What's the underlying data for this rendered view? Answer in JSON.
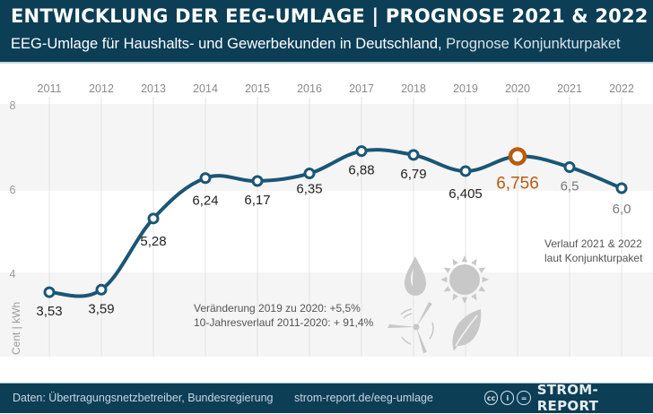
{
  "header": {
    "title": "ENTWICKLUNG DER EEG-UMLAGE | PROGNOSE 2021 & 2022",
    "subtitle_main": "EEG-Umlage für Haushalts- und Gewerbekunden in Deutschland,",
    "subtitle_soft": " Prognose Konjunkturpaket"
  },
  "footer": {
    "source": "Daten: Übertragungsnetzbetreiber, Bundesregierung",
    "url": "strom-report.de/eeg-umlage",
    "brand": "STROM-REPORT",
    "license_icons": [
      "cc-icon",
      "by-icon",
      "nd-icon"
    ]
  },
  "colors": {
    "header_bg": "#0c3e56",
    "line": "#1a5676",
    "highlight": "#b85c10",
    "label_dark": "#222222",
    "label_forecast": "#7a7a7a",
    "band": "#f5f5f5",
    "icon": "#c8c8c8"
  },
  "chart_data": {
    "type": "line",
    "title": "ENTWICKLUNG DER EEG-UMLAGE | PROGNOSE 2021 & 2022",
    "subtitle": "EEG-Umlage für Haushalts- und Gewerbekunden in Deutschland, Prognose Konjunkturpaket",
    "xlabel": "",
    "ylabel": "Cent | kWh",
    "x": [
      "2011",
      "2012",
      "2013",
      "2014",
      "2015",
      "2016",
      "2017",
      "2018",
      "2019",
      "2020",
      "2021",
      "2022"
    ],
    "series": [
      {
        "name": "EEG-Umlage",
        "values": [
          3.53,
          3.59,
          5.28,
          6.24,
          6.17,
          6.35,
          6.88,
          6.79,
          6.405,
          6.756,
          6.5,
          6.0
        ],
        "labels": [
          "3,53",
          "3,59",
          "5,28",
          "6,24",
          "6,17",
          "6,35",
          "6,88",
          "6,79",
          "6,405",
          "6,756",
          "6,5",
          "6,0"
        ],
        "highlight_index": 9,
        "forecast_from_index": 10
      }
    ],
    "yticks": [
      "8",
      "6",
      "4"
    ],
    "ytick_values": [
      8,
      6,
      4
    ],
    "ylim": [
      2,
      8
    ],
    "grid": true,
    "annotations": [
      {
        "text": "Veränderung 2019 zu 2020: +5,5%"
      },
      {
        "text": "10-Jahresverlauf 2011-2020: + 91,4%"
      },
      {
        "text": "Verlauf 2021 & 2022"
      },
      {
        "text": "laut Konjunkturpaket"
      }
    ],
    "decorative_icons": [
      "water-drop-icon",
      "sun-icon",
      "wind-turbine-icon",
      "leaf-icon"
    ]
  }
}
